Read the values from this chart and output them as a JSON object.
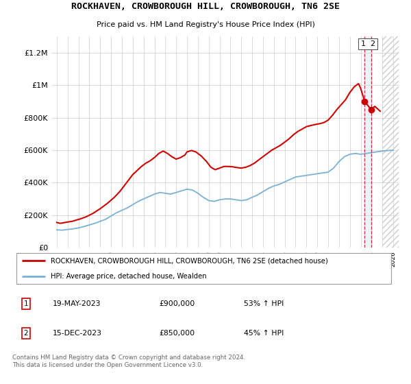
{
  "title": "ROCKHAVEN, CROWBOROUGH HILL, CROWBOROUGH, TN6 2SE",
  "subtitle": "Price paid vs. HM Land Registry's House Price Index (HPI)",
  "legend_label1": "ROCKHAVEN, CROWBOROUGH HILL, CROWBOROUGH, TN6 2SE (detached house)",
  "legend_label2": "HPI: Average price, detached house, Wealden",
  "footer": "Contains HM Land Registry data © Crown copyright and database right 2024.\nThis data is licensed under the Open Government Licence v3.0.",
  "annotation1": {
    "num": "1",
    "date": "19-MAY-2023",
    "price": "£900,000",
    "pct": "53% ↑ HPI"
  },
  "annotation2": {
    "num": "2",
    "date": "15-DEC-2023",
    "price": "£850,000",
    "pct": "45% ↑ HPI"
  },
  "red_color": "#cc0000",
  "blue_color": "#7ab0d4",
  "grid_color": "#cccccc",
  "background_color": "#ffffff",
  "shade_color": "#e8e8f8",
  "ylim": [
    0,
    1300000
  ],
  "yticks": [
    0,
    200000,
    400000,
    600000,
    800000,
    1000000,
    1200000
  ],
  "ytick_labels": [
    "£0",
    "£200K",
    "£400K",
    "£600K",
    "£800K",
    "£1M",
    "£1.2M"
  ],
  "xlim_min": 1994.5,
  "xlim_max": 2026.5,
  "sale1_x": 2023.37,
  "sale1_y": 900000,
  "sale2_x": 2023.96,
  "sale2_y": 850000,
  "red_x": [
    1995.0,
    1995.3,
    1995.6,
    1996.0,
    1996.4,
    1996.8,
    1997.2,
    1997.7,
    1998.3,
    1999.0,
    1999.7,
    2000.3,
    2000.8,
    2001.2,
    2001.6,
    2002.0,
    2002.4,
    2002.8,
    2003.2,
    2003.6,
    2004.0,
    2004.4,
    2004.8,
    2005.2,
    2005.6,
    2006.0,
    2006.4,
    2006.8,
    2007.0,
    2007.4,
    2007.8,
    2008.3,
    2008.8,
    2009.2,
    2009.6,
    2010.0,
    2010.4,
    2010.8,
    2011.2,
    2011.6,
    2012.0,
    2012.4,
    2012.8,
    2013.2,
    2013.6,
    2014.0,
    2014.4,
    2014.8,
    2015.2,
    2015.6,
    2016.0,
    2016.4,
    2016.8,
    2017.2,
    2017.6,
    2018.0,
    2018.4,
    2018.8,
    2019.2,
    2019.6,
    2020.0,
    2020.4,
    2020.8,
    2021.2,
    2021.6,
    2022.0,
    2022.4,
    2022.8,
    2023.0,
    2023.37,
    2023.96,
    2024.3,
    2024.8
  ],
  "red_y": [
    155000,
    150000,
    153000,
    158000,
    162000,
    170000,
    178000,
    190000,
    210000,
    240000,
    275000,
    310000,
    345000,
    380000,
    415000,
    450000,
    475000,
    500000,
    520000,
    535000,
    555000,
    580000,
    595000,
    580000,
    560000,
    545000,
    555000,
    570000,
    590000,
    598000,
    590000,
    565000,
    530000,
    495000,
    480000,
    490000,
    500000,
    500000,
    498000,
    493000,
    490000,
    495000,
    505000,
    520000,
    540000,
    560000,
    580000,
    600000,
    615000,
    630000,
    650000,
    670000,
    695000,
    715000,
    730000,
    745000,
    752000,
    758000,
    763000,
    770000,
    785000,
    815000,
    850000,
    880000,
    910000,
    955000,
    990000,
    1010000,
    980000,
    900000,
    850000,
    870000,
    840000
  ],
  "blue_x": [
    1995.0,
    1995.5,
    1996.0,
    1996.5,
    1997.0,
    1997.5,
    1998.0,
    1998.5,
    1999.0,
    1999.5,
    2000.0,
    2000.5,
    2001.0,
    2001.5,
    2002.0,
    2002.5,
    2003.0,
    2003.5,
    2004.0,
    2004.5,
    2005.0,
    2005.5,
    2006.0,
    2006.5,
    2007.0,
    2007.5,
    2008.0,
    2008.5,
    2009.0,
    2009.5,
    2010.0,
    2010.5,
    2011.0,
    2011.5,
    2012.0,
    2012.5,
    2013.0,
    2013.5,
    2014.0,
    2014.5,
    2015.0,
    2015.5,
    2016.0,
    2016.5,
    2017.0,
    2017.5,
    2018.0,
    2018.5,
    2019.0,
    2019.5,
    2020.0,
    2020.5,
    2021.0,
    2021.5,
    2022.0,
    2022.5,
    2023.0,
    2023.5,
    2024.0,
    2024.5,
    2025.0,
    2025.5,
    2026.0
  ],
  "blue_y": [
    110000,
    108000,
    112000,
    116000,
    122000,
    130000,
    140000,
    150000,
    162000,
    175000,
    195000,
    215000,
    230000,
    245000,
    265000,
    285000,
    300000,
    315000,
    330000,
    340000,
    335000,
    330000,
    340000,
    350000,
    360000,
    355000,
    335000,
    310000,
    290000,
    285000,
    295000,
    300000,
    300000,
    295000,
    290000,
    295000,
    310000,
    325000,
    345000,
    365000,
    380000,
    390000,
    405000,
    420000,
    435000,
    440000,
    445000,
    450000,
    455000,
    460000,
    465000,
    490000,
    530000,
    560000,
    575000,
    580000,
    575000,
    580000,
    585000,
    590000,
    595000,
    598000,
    600000
  ]
}
